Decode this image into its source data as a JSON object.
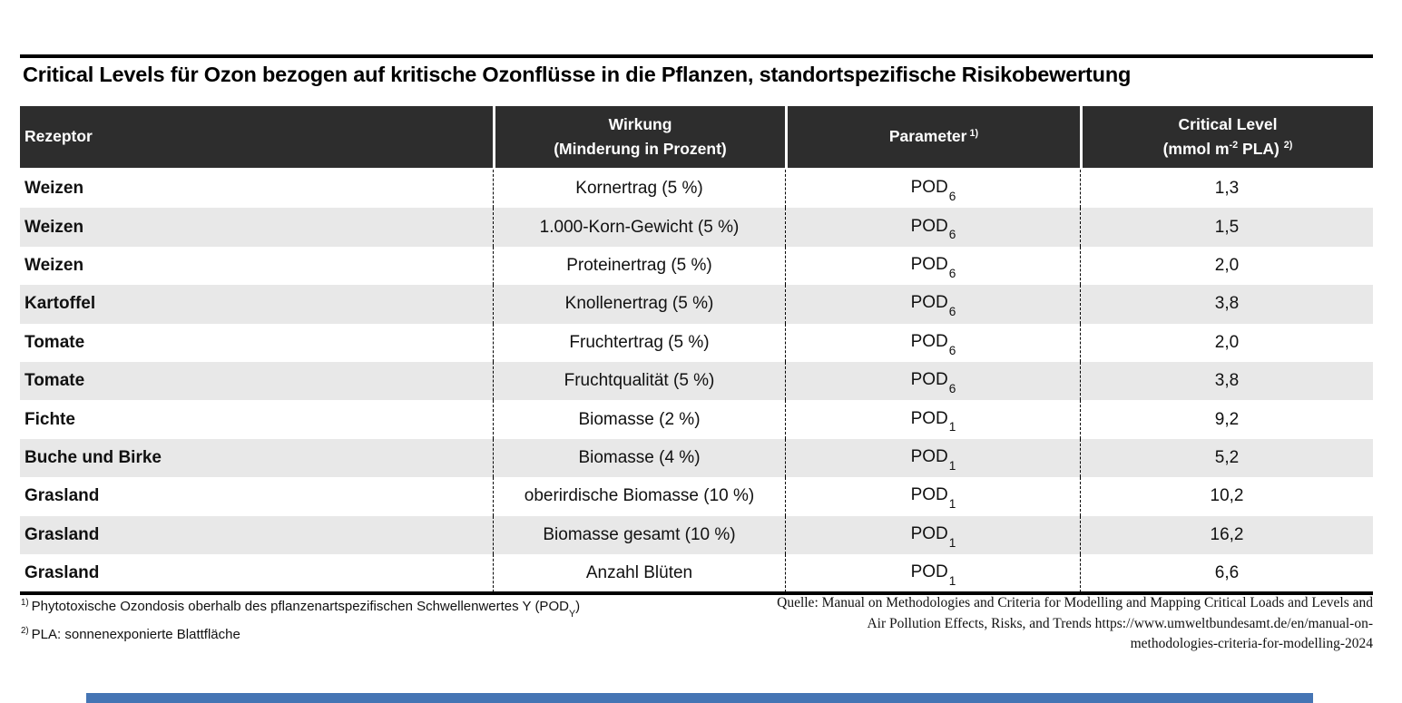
{
  "title": "Critical Levels für Ozon bezogen auf kritische Ozonflüsse in die Pflanzen, standortspezifische Risikobewertung",
  "table": {
    "header": {
      "col1": "Rezeptor",
      "col2_line1": "Wirkung",
      "col2_line2": "(Minderung in Prozent)",
      "col3_label": "Parameter",
      "col3_sup": "1)",
      "col4_line1": "Critical Level",
      "col4_line2_pre": "(mmol m",
      "col4_line2_sup1": "-2",
      "col4_line2_mid": " PLA) ",
      "col4_line2_sup2": "2)"
    },
    "rows": [
      {
        "receptor": "Weizen",
        "effect": "Kornertrag (5 %)",
        "parameter_base": "POD",
        "parameter_sub": "6",
        "critical_level": "1,3"
      },
      {
        "receptor": "Weizen",
        "effect": "1.000-Korn-Gewicht (5 %)",
        "parameter_base": "POD",
        "parameter_sub": "6",
        "critical_level": "1,5"
      },
      {
        "receptor": "Weizen",
        "effect": "Proteinertrag (5 %)",
        "parameter_base": "POD",
        "parameter_sub": "6",
        "critical_level": "2,0"
      },
      {
        "receptor": "Kartoffel",
        "effect": "Knollenertrag (5 %)",
        "parameter_base": "POD",
        "parameter_sub": "6",
        "critical_level": "3,8"
      },
      {
        "receptor": "Tomate",
        "effect": "Fruchtertrag (5 %)",
        "parameter_base": "POD",
        "parameter_sub": "6",
        "critical_level": "2,0"
      },
      {
        "receptor": "Tomate",
        "effect": "Fruchtqualität (5 %)",
        "parameter_base": "POD",
        "parameter_sub": "6",
        "critical_level": "3,8"
      },
      {
        "receptor": "Fichte",
        "effect": "Biomasse (2 %)",
        "parameter_base": "POD",
        "parameter_sub": "1",
        "critical_level": "9,2"
      },
      {
        "receptor": "Buche und Birke",
        "effect": "Biomasse (4 %)",
        "parameter_base": "POD",
        "parameter_sub": "1",
        "critical_level": "5,2"
      },
      {
        "receptor": "Grasland",
        "effect": "oberirdische Biomasse (10 %)",
        "parameter_base": "POD",
        "parameter_sub": "1",
        "critical_level": "10,2"
      },
      {
        "receptor": "Grasland",
        "effect": "Biomasse gesamt (10 %)",
        "parameter_base": "POD",
        "parameter_sub": "1",
        "critical_level": "16,2"
      },
      {
        "receptor": "Grasland",
        "effect": "Anzahl Blüten",
        "parameter_base": "POD",
        "parameter_sub": "1",
        "critical_level": "6,6"
      }
    ]
  },
  "footnotes": {
    "fn1_marker": "1)",
    "fn1_text_pre": "Phytotoxische Ozondosis oberhalb des  pflanzenartspezifischen Schwellenwertes Y (POD",
    "fn1_sub": "Y",
    "fn1_text_post": ")",
    "fn2_marker": "2)",
    "fn2_text": "PLA: sonnenexponierte Blattfläche"
  },
  "source": {
    "lines": [
      "Quelle: Manual on Methodologies and Criteria for Modelling and Mapping Critical Loads and Levels and",
      "Air Pollution Effects, Risks, and Trends https://www.umweltbundesamt.de/en/manual-on-",
      "methodologies-criteria-for-modelling-2024"
    ]
  },
  "colors": {
    "header_bg": "#2d2d2d",
    "row_alt_bg": "#e8e8e8",
    "rule": "#000000",
    "footer_bar": "#4575b4"
  },
  "chart_data": {
    "type": "table",
    "title": "Critical Levels für Ozon bezogen auf kritische Ozonflüsse in die Pflanzen, standortspezifische Risikobewertung",
    "columns": [
      "Rezeptor",
      "Wirkung (Minderung in Prozent)",
      "Parameter 1)",
      "Critical Level (mmol m-2 PLA) 2)"
    ],
    "rows": [
      [
        "Weizen",
        "Kornertrag (5 %)",
        "POD6",
        "1,3"
      ],
      [
        "Weizen",
        "1.000-Korn-Gewicht (5 %)",
        "POD6",
        "1,5"
      ],
      [
        "Weizen",
        "Proteinertrag (5 %)",
        "POD6",
        "2,0"
      ],
      [
        "Kartoffel",
        "Knollenertrag (5 %)",
        "POD6",
        "3,8"
      ],
      [
        "Tomate",
        "Fruchtertrag (5 %)",
        "POD6",
        "2,0"
      ],
      [
        "Tomate",
        "Fruchtqualität (5 %)",
        "POD6",
        "3,8"
      ],
      [
        "Fichte",
        "Biomasse (2 %)",
        "POD1",
        "9,2"
      ],
      [
        "Buche und Birke",
        "Biomasse (4 %)",
        "POD1",
        "5,2"
      ],
      [
        "Grasland",
        "oberirdische Biomasse (10 %)",
        "POD1",
        "10,2"
      ],
      [
        "Grasland",
        "Biomasse gesamt (10 %)",
        "POD1",
        "16,2"
      ],
      [
        "Grasland",
        "Anzahl Blüten",
        "POD1",
        "6,6"
      ]
    ],
    "footnotes": [
      "1) Phytotoxische Ozondosis oberhalb des pflanzenartspezifischen Schwellenwertes Y (PODY)",
      "2) PLA: sonnenexponierte Blattfläche"
    ],
    "source": "Quelle: Manual on Methodologies and Criteria for Modelling and Mapping Critical Loads and Levels and Air Pollution Effects, Risks, and Trends https://www.umweltbundesamt.de/en/manual-on-methodologies-criteria-for-modelling-2024"
  }
}
